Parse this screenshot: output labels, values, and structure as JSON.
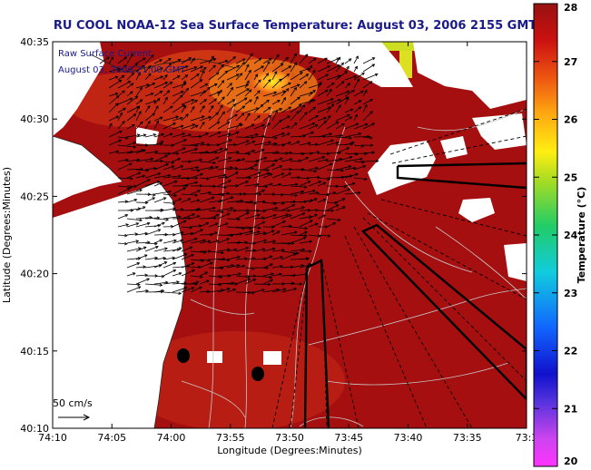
{
  "title": "RU COOL  NOAA-12  Sea Surface Temperature:  August 03, 2006 2155 GMT",
  "overlay": {
    "line1": "Raw Surface Current",
    "line2": "August 03, 2006 21:00 GMT"
  },
  "x_axis": {
    "label": "Longitude (Degrees:Minutes)",
    "ticks": [
      "74:10",
      "74:05",
      "74:00",
      "73:55",
      "73:50",
      "73:45",
      "73:40",
      "73:35",
      "73:3"
    ]
  },
  "y_axis": {
    "label": "Latitude (Degrees:Minutes)",
    "ticks": [
      "40:35",
      "40:30",
      "40:25",
      "40:20",
      "40:15",
      "40:10"
    ]
  },
  "scale_label": "50 cm/s",
  "colorbar": {
    "label": "Temperature (°C)",
    "ticks": [
      "28",
      "27",
      "26",
      "25",
      "24",
      "23",
      "22",
      "21",
      "20"
    ],
    "min": 20,
    "max": 28
  },
  "colors": {
    "sst_main": "#a50f0f",
    "land": "#ffffff",
    "title": "#1a1a8a"
  }
}
